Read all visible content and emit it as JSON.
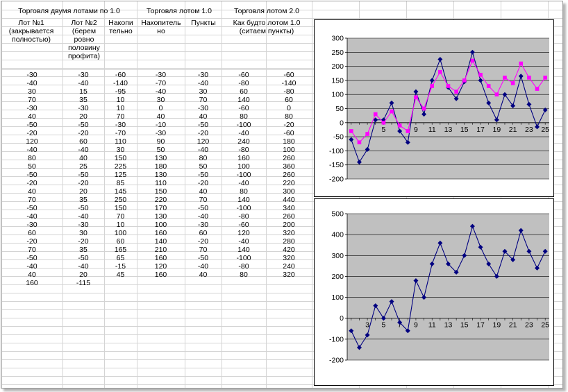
{
  "sheet": {
    "group_headers": [
      "Торговля двумя лотами по 1.0",
      "Торговля лотом 1.0",
      "Торговля лотом 2.0"
    ],
    "column_headers": [
      "Лот №1 (закрывается полностью)",
      "Лот №2 (берем ровно половину профита)",
      "Накопи тельно",
      "Накопитель но",
      "Пункты",
      "Как будто лотом 1.0 (ситаем пункты)",
      ""
    ],
    "rows": [
      [
        "-30",
        "-30",
        "-60",
        "-30",
        "-30",
        "-60",
        "-60"
      ],
      [
        "-40",
        "-40",
        "-140",
        "-70",
        "-40",
        "-80",
        "-140"
      ],
      [
        "30",
        "15",
        "-95",
        "-40",
        "30",
        "60",
        "-80"
      ],
      [
        "70",
        "35",
        "10",
        "30",
        "70",
        "140",
        "60"
      ],
      [
        "-30",
        "-30",
        "10",
        "0",
        "-30",
        "-60",
        "0"
      ],
      [
        "40",
        "20",
        "70",
        "40",
        "40",
        "80",
        "80"
      ],
      [
        "-50",
        "-50",
        "-30",
        "-10",
        "-50",
        "-100",
        "-20"
      ],
      [
        "-20",
        "-20",
        "-70",
        "-30",
        "-20",
        "-40",
        "-60"
      ],
      [
        "120",
        "60",
        "110",
        "90",
        "120",
        "240",
        "180"
      ],
      [
        "-40",
        "-40",
        "30",
        "50",
        "-40",
        "-80",
        "100"
      ],
      [
        "80",
        "40",
        "150",
        "130",
        "80",
        "160",
        "260"
      ],
      [
        "50",
        "25",
        "225",
        "180",
        "50",
        "100",
        "360"
      ],
      [
        "-50",
        "-50",
        "125",
        "130",
        "-50",
        "-100",
        "260"
      ],
      [
        "-20",
        "-20",
        "85",
        "110",
        "-20",
        "-40",
        "220"
      ],
      [
        "40",
        "20",
        "145",
        "150",
        "40",
        "80",
        "300"
      ],
      [
        "70",
        "35",
        "250",
        "220",
        "70",
        "140",
        "440"
      ],
      [
        "-50",
        "-50",
        "150",
        "170",
        "-50",
        "-100",
        "340"
      ],
      [
        "-40",
        "-40",
        "70",
        "130",
        "-40",
        "-80",
        "260"
      ],
      [
        "-30",
        "-30",
        "10",
        "100",
        "-30",
        "-60",
        "200"
      ],
      [
        "60",
        "30",
        "100",
        "160",
        "60",
        "120",
        "320"
      ],
      [
        "-20",
        "-20",
        "60",
        "140",
        "-20",
        "-40",
        "280"
      ],
      [
        "70",
        "35",
        "165",
        "210",
        "70",
        "140",
        "420"
      ],
      [
        "-50",
        "-50",
        "65",
        "160",
        "-50",
        "-100",
        "320"
      ],
      [
        "-40",
        "-40",
        "-15",
        "120",
        "-40",
        "-80",
        "240"
      ],
      [
        "40",
        "20",
        "45",
        "160",
        "40",
        "80",
        "320"
      ]
    ],
    "totals": [
      "160",
      "-115"
    ]
  },
  "chart_data": [
    {
      "type": "line",
      "x": [
        1,
        2,
        3,
        4,
        5,
        6,
        7,
        8,
        9,
        10,
        11,
        12,
        13,
        14,
        15,
        16,
        17,
        18,
        19,
        20,
        21,
        22,
        23,
        24,
        25
      ],
      "xticks": [
        "1",
        "3",
        "5",
        "7",
        "9",
        "11",
        "13",
        "15",
        "17",
        "19",
        "21",
        "23",
        "25"
      ],
      "xticks_shown": [
        "5",
        "9",
        "11",
        "13",
        "15",
        "17",
        "19",
        "21",
        "23",
        "25"
      ],
      "ylim": [
        -200,
        300
      ],
      "yticks": [
        "300",
        "250",
        "200",
        "150",
        "100",
        "50",
        "0",
        "-50",
        "-100",
        "-150",
        "-200"
      ],
      "grid": true,
      "plot_bg": "#c0c0c0",
      "series": [
        {
          "color": "#000080",
          "marker": "diamond",
          "values": [
            -60,
            -140,
            -95,
            10,
            10,
            70,
            -30,
            -70,
            110,
            30,
            150,
            225,
            125,
            85,
            145,
            250,
            150,
            70,
            10,
            100,
            60,
            165,
            65,
            -15,
            45
          ]
        },
        {
          "color": "#ff00ff",
          "marker": "square",
          "values": [
            -30,
            -70,
            -40,
            30,
            0,
            40,
            -10,
            -30,
            90,
            50,
            130,
            180,
            130,
            110,
            150,
            220,
            170,
            130,
            100,
            160,
            140,
            210,
            160,
            120,
            160
          ]
        }
      ]
    },
    {
      "type": "line",
      "x": [
        1,
        2,
        3,
        4,
        5,
        6,
        7,
        8,
        9,
        10,
        11,
        12,
        13,
        14,
        15,
        16,
        17,
        18,
        19,
        20,
        21,
        22,
        23,
        24,
        25
      ],
      "xticks": [
        "1",
        "3",
        "5",
        "7",
        "9",
        "11",
        "13",
        "15",
        "17",
        "19",
        "21",
        "23",
        "25"
      ],
      "xticks_shown": [
        "3",
        "5",
        "7",
        "9",
        "11",
        "13",
        "15",
        "17",
        "19",
        "21",
        "23",
        "25"
      ],
      "ylim": [
        -200,
        500
      ],
      "yticks": [
        "500",
        "400",
        "300",
        "200",
        "100",
        "0",
        "-100",
        "-200"
      ],
      "grid": true,
      "plot_bg": "#c0c0c0",
      "series": [
        {
          "color": "#000080",
          "marker": "diamond",
          "values": [
            -60,
            -140,
            -80,
            60,
            0,
            80,
            -20,
            -60,
            180,
            100,
            260,
            360,
            260,
            220,
            300,
            440,
            340,
            260,
            200,
            320,
            280,
            420,
            320,
            240,
            320
          ]
        }
      ]
    }
  ]
}
